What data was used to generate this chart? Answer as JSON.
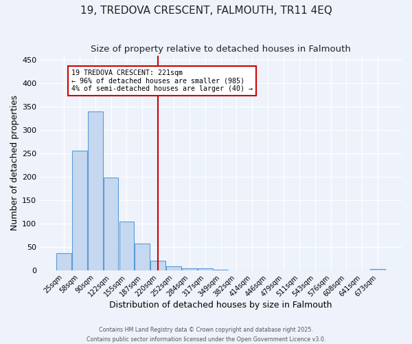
{
  "title": "19, TREDOVA CRESCENT, FALMOUTH, TR11 4EQ",
  "subtitle": "Size of property relative to detached houses in Falmouth",
  "xlabel": "Distribution of detached houses by size in Falmouth",
  "ylabel": "Number of detached properties",
  "categories": [
    "25sqm",
    "58sqm",
    "90sqm",
    "122sqm",
    "155sqm",
    "187sqm",
    "220sqm",
    "252sqm",
    "284sqm",
    "317sqm",
    "349sqm",
    "382sqm",
    "414sqm",
    "446sqm",
    "479sqm",
    "511sqm",
    "543sqm",
    "576sqm",
    "608sqm",
    "641sqm",
    "673sqm"
  ],
  "values": [
    37,
    256,
    340,
    198,
    104,
    57,
    20,
    9,
    5,
    4,
    2,
    0,
    0,
    0,
    0,
    0,
    0,
    0,
    0,
    0,
    3
  ],
  "bar_color": "#c5d8f0",
  "bar_edge_color": "#5b9bd5",
  "vline_x_index": 6,
  "vline_color": "#cc0000",
  "annotation_text": "19 TREDOVA CRESCENT: 221sqm\n← 96% of detached houses are smaller (985)\n4% of semi-detached houses are larger (40) →",
  "annotation_box_color": "#cc0000",
  "annotation_bg_color": "#ffffff",
  "ylim": [
    0,
    460
  ],
  "yticks": [
    0,
    50,
    100,
    150,
    200,
    250,
    300,
    350,
    400,
    450
  ],
  "bg_color": "#eef3fb",
  "grid_color": "#ffffff",
  "title_fontsize": 11,
  "subtitle_fontsize": 9.5,
  "footer_line1": "Contains HM Land Registry data © Crown copyright and database right 2025.",
  "footer_line2": "Contains public sector information licensed under the Open Government Licence v3.0."
}
